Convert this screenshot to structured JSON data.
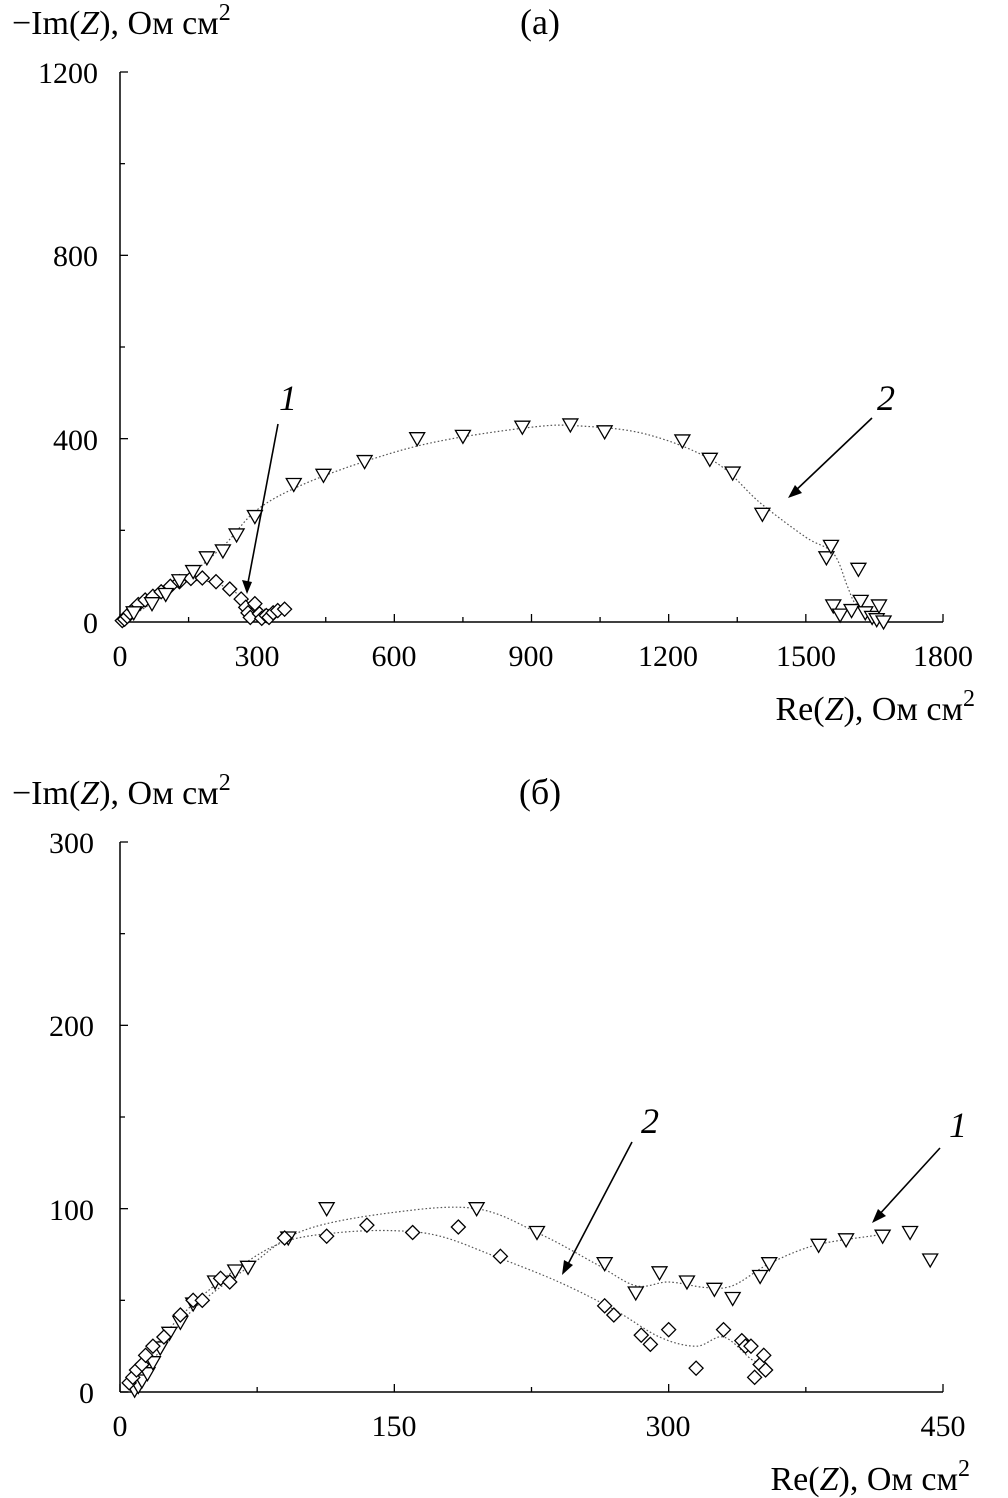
{
  "chart_data": [
    {
      "type": "scatter",
      "panel_label": "(а)",
      "ylabel_prefix": "−Im(",
      "ylabel_var": "Z",
      "ylabel_suffix": "), Ом см",
      "xlabel_prefix": "Re(",
      "xlabel_var": "Z",
      "xlabel_suffix": "), Ом см",
      "unit_sup": "2",
      "xlim": [
        0,
        1800
      ],
      "ylim": [
        0,
        1200
      ],
      "xticks": [
        "0",
        "300",
        "600",
        "900",
        "1200",
        "1500",
        "1800"
      ],
      "yticks": [
        "0",
        "400",
        "800",
        "1200"
      ],
      "series": [
        {
          "curve_label": "1",
          "marker": "diamond",
          "points": [
            [
              5,
              3
            ],
            [
              10,
              6
            ],
            [
              16,
              12
            ],
            [
              22,
              20
            ],
            [
              30,
              28
            ],
            [
              40,
              38
            ],
            [
              55,
              48
            ],
            [
              72,
              56
            ],
            [
              90,
              66
            ],
            [
              110,
              78
            ],
            [
              130,
              88
            ],
            [
              155,
              95
            ],
            [
              180,
              96
            ],
            [
              210,
              88
            ],
            [
              240,
              72
            ],
            [
              265,
              50
            ],
            [
              275,
              32
            ],
            [
              280,
              20
            ],
            [
              285,
              10
            ],
            [
              295,
              40
            ],
            [
              305,
              18
            ],
            [
              310,
              8
            ],
            [
              320,
              14
            ],
            [
              326,
              10
            ],
            [
              335,
              20
            ],
            [
              345,
              25
            ],
            [
              360,
              28
            ]
          ],
          "fit": [
            [
              0,
              0
            ],
            [
              15,
              8
            ],
            [
              40,
              26
            ],
            [
              80,
              55
            ],
            [
              120,
              78
            ],
            [
              160,
              90
            ],
            [
              200,
              87
            ],
            [
              240,
              72
            ],
            [
              265,
              55
            ],
            [
              283,
              38
            ],
            [
              300,
              30
            ],
            [
              330,
              27
            ],
            [
              360,
              28
            ]
          ]
        },
        {
          "curve_label": "2",
          "marker": "triangle-down",
          "points": [
            [
              30,
              20
            ],
            [
              70,
              40
            ],
            [
              100,
              60
            ],
            [
              130,
              90
            ],
            [
              160,
              110
            ],
            [
              190,
              140
            ],
            [
              225,
              155
            ],
            [
              255,
              190
            ],
            [
              295,
              230
            ],
            [
              380,
              300
            ],
            [
              445,
              320
            ],
            [
              535,
              350
            ],
            [
              650,
              400
            ],
            [
              750,
              405
            ],
            [
              880,
              425
            ],
            [
              985,
              430
            ],
            [
              1060,
              415
            ],
            [
              1230,
              395
            ],
            [
              1290,
              355
            ],
            [
              1340,
              325
            ],
            [
              1405,
              235
            ],
            [
              1545,
              140
            ],
            [
              1555,
              165
            ],
            [
              1560,
              35
            ],
            [
              1575,
              15
            ],
            [
              1600,
              25
            ],
            [
              1615,
              115
            ],
            [
              1620,
              45
            ],
            [
              1630,
              20
            ],
            [
              1645,
              10
            ],
            [
              1655,
              5
            ],
            [
              1660,
              35
            ],
            [
              1670,
              0
            ]
          ],
          "fit": [
            [
              0,
              0
            ],
            [
              60,
              35
            ],
            [
              150,
              100
            ],
            [
              230,
              170
            ],
            [
              300,
              245
            ],
            [
              400,
              300
            ],
            [
              550,
              355
            ],
            [
              700,
              395
            ],
            [
              900,
              425
            ],
            [
              1000,
              428
            ],
            [
              1150,
              410
            ],
            [
              1300,
              350
            ],
            [
              1400,
              260
            ],
            [
              1500,
              185
            ],
            [
              1560,
              150
            ],
            [
              1590,
              80
            ],
            [
              1605,
              45
            ],
            [
              1620,
              35
            ]
          ]
        }
      ]
    },
    {
      "type": "scatter",
      "panel_label": "(б)",
      "ylabel_prefix": "−Im(",
      "ylabel_var": "Z",
      "ylabel_suffix": "), Ом см",
      "xlabel_prefix": "Re(",
      "xlabel_var": "Z",
      "xlabel_suffix": "), Ом см",
      "unit_sup": "2",
      "xlim": [
        0,
        450
      ],
      "ylim": [
        0,
        300
      ],
      "xticks": [
        "0",
        "150",
        "300",
        "450"
      ],
      "yticks": [
        "0",
        "100",
        "200",
        "300"
      ],
      "series": [
        {
          "curve_label": "1",
          "marker": "triangle-down",
          "points": [
            [
              8,
              1
            ],
            [
              10,
              3
            ],
            [
              12,
              6
            ],
            [
              15,
              10
            ],
            [
              18,
              16
            ],
            [
              22,
              24
            ],
            [
              27,
              32
            ],
            [
              33,
              38
            ],
            [
              40,
              48
            ],
            [
              52,
              60
            ],
            [
              63,
              66
            ],
            [
              70,
              68
            ],
            [
              92,
              84
            ],
            [
              113,
              100
            ],
            [
              195,
              100
            ],
            [
              228,
              87
            ],
            [
              265,
              70
            ],
            [
              282,
              54
            ],
            [
              295,
              65
            ],
            [
              310,
              60
            ],
            [
              325,
              56
            ],
            [
              335,
              51
            ],
            [
              350,
              63
            ],
            [
              355,
              70
            ],
            [
              382,
              80
            ],
            [
              397,
              83
            ],
            [
              417,
              85
            ],
            [
              432,
              87
            ],
            [
              443,
              72
            ]
          ],
          "fit": [
            [
              5,
              0
            ],
            [
              20,
              20
            ],
            [
              40,
              45
            ],
            [
              70,
              68
            ],
            [
              100,
              88
            ],
            [
              150,
              98
            ],
            [
              195,
              100
            ],
            [
              230,
              86
            ],
            [
              260,
              70
            ],
            [
              282,
              58
            ],
            [
              300,
              60
            ],
            [
              320,
              57
            ],
            [
              335,
              58
            ],
            [
              355,
              70
            ],
            [
              380,
              80
            ],
            [
              410,
              85
            ],
            [
              420,
              86
            ]
          ]
        },
        {
          "curve_label": "2",
          "marker": "diamond",
          "points": [
            [
              5,
              5
            ],
            [
              7,
              8
            ],
            [
              9,
              12
            ],
            [
              12,
              15
            ],
            [
              14,
              20
            ],
            [
              18,
              25
            ],
            [
              24,
              30
            ],
            [
              33,
              42
            ],
            [
              40,
              50
            ],
            [
              45,
              50
            ],
            [
              55,
              62
            ],
            [
              60,
              60
            ],
            [
              90,
              84
            ],
            [
              113,
              85
            ],
            [
              135,
              91
            ],
            [
              160,
              87
            ],
            [
              185,
              90
            ],
            [
              208,
              74
            ],
            [
              265,
              47
            ],
            [
              270,
              42
            ],
            [
              285,
              31
            ],
            [
              290,
              26
            ],
            [
              300,
              34
            ],
            [
              315,
              13
            ],
            [
              330,
              34
            ],
            [
              340,
              28
            ],
            [
              342,
              25
            ],
            [
              345,
              25
            ],
            [
              347,
              8
            ],
            [
              350,
              15
            ],
            [
              352,
              20
            ],
            [
              353,
              12
            ]
          ],
          "fit": [
            [
              5,
              3
            ],
            [
              20,
              26
            ],
            [
              40,
              48
            ],
            [
              65,
              68
            ],
            [
              90,
              82
            ],
            [
              120,
              87
            ],
            [
              150,
              88
            ],
            [
              175,
              85
            ],
            [
              205,
              74
            ],
            [
              240,
              60
            ],
            [
              270,
              45
            ],
            [
              295,
              30
            ],
            [
              315,
              25
            ],
            [
              330,
              30
            ],
            [
              345,
              18
            ],
            [
              352,
              15
            ]
          ]
        }
      ]
    }
  ]
}
